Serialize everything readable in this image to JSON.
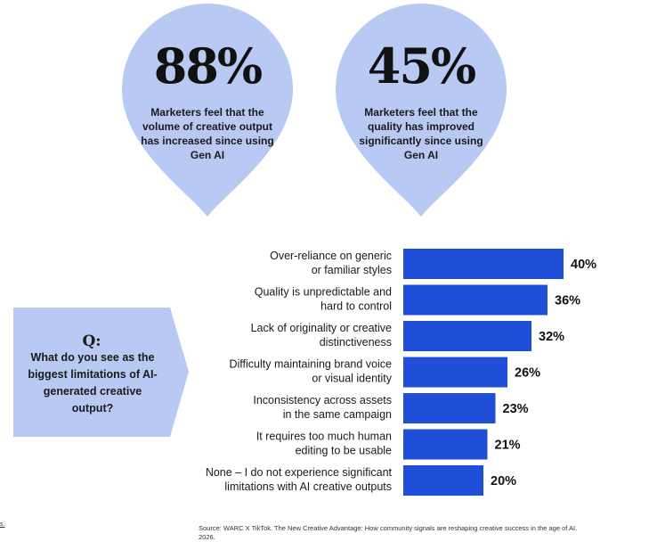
{
  "stats": [
    {
      "value": "88%",
      "caption": "Marketers feel that the volume of creative output has increased since using Gen AI"
    },
    {
      "value": "45%",
      "caption": "Marketers feel that the quality has improved significantly since using Gen AI"
    }
  ],
  "question": {
    "label": "Q:",
    "text": "What do you see as the biggest limitations of AI-generated creative output?"
  },
  "chart_data": {
    "type": "bar",
    "orientation": "horizontal",
    "categories": [
      [
        "Over-reliance on generic",
        "or familiar styles"
      ],
      [
        "Quality is unpredictable and",
        "hard to control"
      ],
      [
        "Lack of originality or creative",
        "distinctiveness"
      ],
      [
        "Difficulty maintaining brand voice",
        "or visual identity"
      ],
      [
        "Inconsistency across assets",
        "in the same campaign"
      ],
      [
        "It requires too much human",
        "editing to be usable"
      ],
      [
        "None – I do not experience significant",
        "limitations with AI creative outputs"
      ]
    ],
    "values": [
      40,
      36,
      32,
      26,
      23,
      21,
      20
    ],
    "value_labels": [
      "40%",
      "36%",
      "32%",
      "26%",
      "23%",
      "21%",
      "20%"
    ],
    "bar_color": "#1f4fd8",
    "xlim": [
      0,
      40
    ]
  },
  "colors": {
    "bubble": "#b8c9f4",
    "question_box": "#b8c9f4",
    "bar": "#1f4fd8"
  },
  "footer": {
    "left_fragment": "s.",
    "source": "Source: WARC X TikTok. The New Creative Advantage: How community signals are reshaping creative success in the age of AI. 2026."
  }
}
